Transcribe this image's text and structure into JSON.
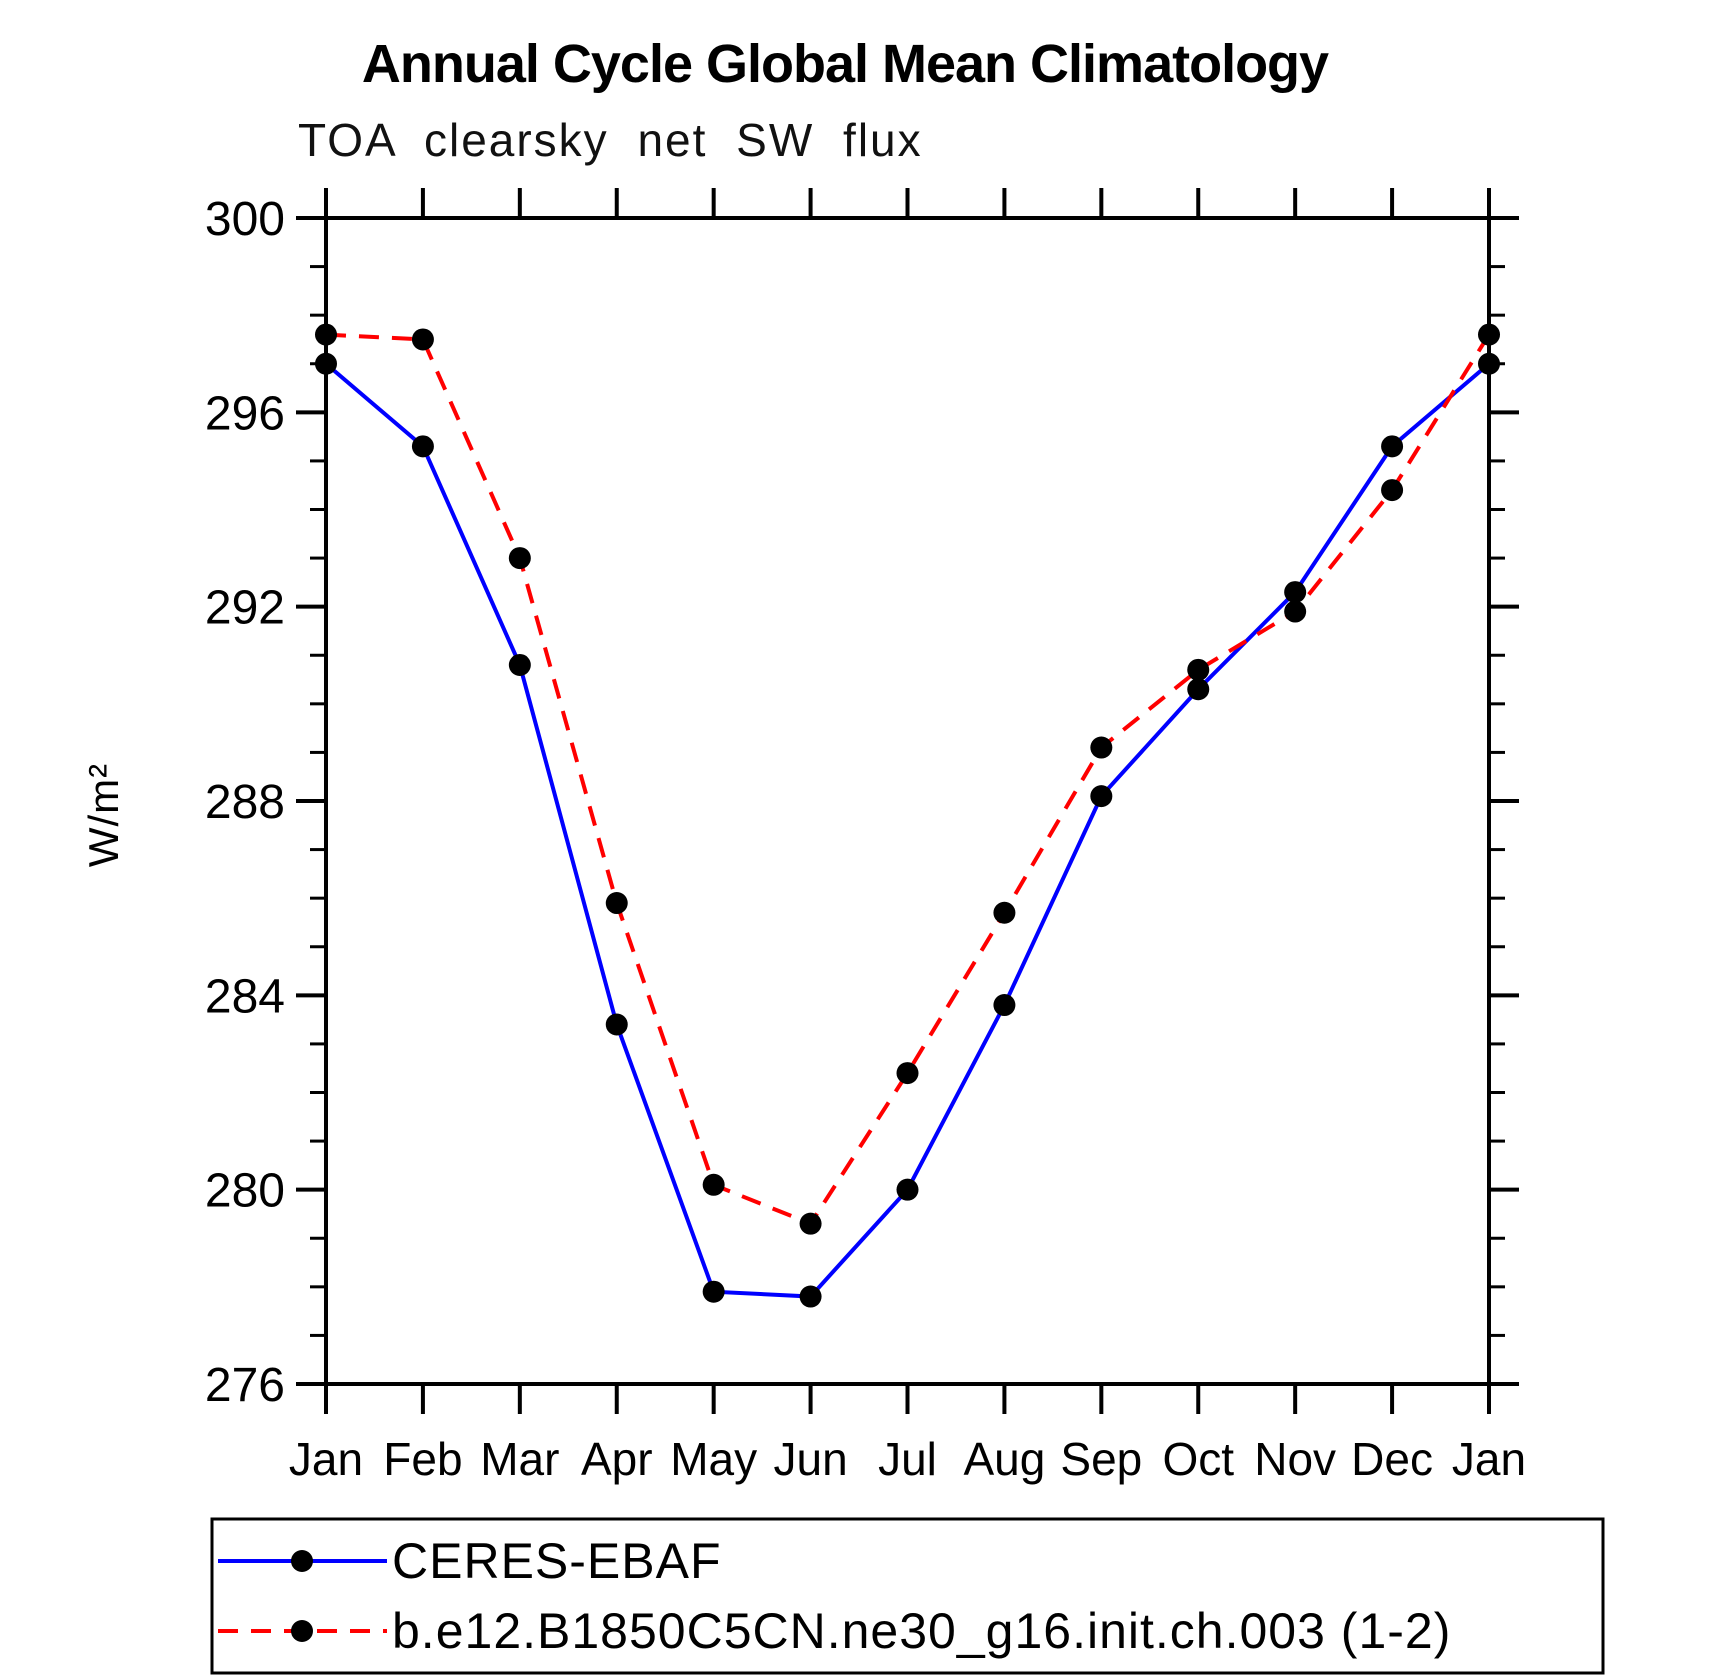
{
  "chart_data": {
    "type": "line",
    "title": "Annual Cycle Global Mean Climatology",
    "subtitle": "TOA clearsky net SW flux",
    "ylabel": "W/m²",
    "xlabel": "",
    "ylim": [
      276,
      300
    ],
    "y_major_ticks": [
      276,
      280,
      284,
      288,
      292,
      296,
      300
    ],
    "y_minor_step": 1,
    "x_tick_labels": [
      "Jan",
      "Feb",
      "Mar",
      "Apr",
      "May",
      "Jun",
      "Jul",
      "Aug",
      "Sep",
      "Oct",
      "Nov",
      "Dec",
      "Jan"
    ],
    "grid": false,
    "legend_position": "bottom",
    "axis_color": "#000000",
    "marker_color": "#000000",
    "series": [
      {
        "name": "CERES-EBAF",
        "color": "#0000ff",
        "line_style": "solid",
        "marker": "circle",
        "values": [
          297.0,
          295.3,
          290.8,
          283.4,
          277.9,
          277.8,
          280.0,
          283.8,
          288.1,
          290.3,
          292.3,
          295.3,
          297.0
        ]
      },
      {
        "name": "b.e12.B1850C5CN.ne30_g16.init.ch.003 (1-2)",
        "color": "#ff0000",
        "line_style": "dashed",
        "marker": "circle",
        "values": [
          297.6,
          297.5,
          293.0,
          285.9,
          280.1,
          279.3,
          282.4,
          285.7,
          289.1,
          290.7,
          291.9,
          294.4,
          297.6
        ]
      }
    ]
  }
}
